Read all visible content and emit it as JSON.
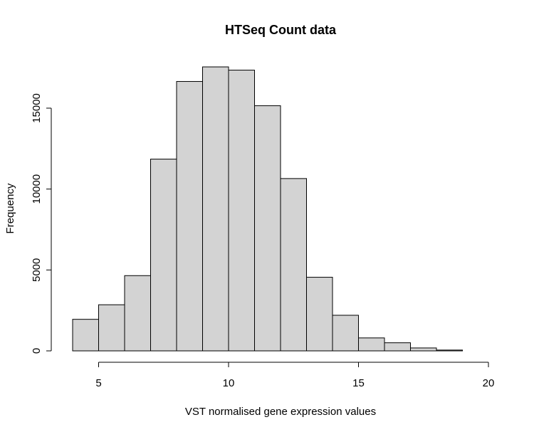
{
  "chart_data": {
    "type": "bar",
    "title": "HTSeq Count data",
    "xlabel": "VST normalised gene expression values",
    "ylabel": "Frequency",
    "bin_edges": [
      4,
      5,
      6,
      7,
      8,
      9,
      10,
      11,
      12,
      13,
      14,
      15,
      16,
      17,
      18,
      19
    ],
    "values": [
      1950,
      2850,
      4650,
      11850,
      16650,
      17550,
      17350,
      15150,
      10650,
      4550,
      2200,
      800,
      500,
      180,
      50
    ],
    "xlim": [
      4,
      19
    ],
    "ylim": [
      0,
      17550
    ],
    "x_ticks": [
      5,
      10,
      15,
      20
    ],
    "y_ticks": [
      0,
      5000,
      10000,
      15000
    ],
    "grid": false,
    "bar_color": "#d3d3d3",
    "edge_color": "#000000"
  }
}
